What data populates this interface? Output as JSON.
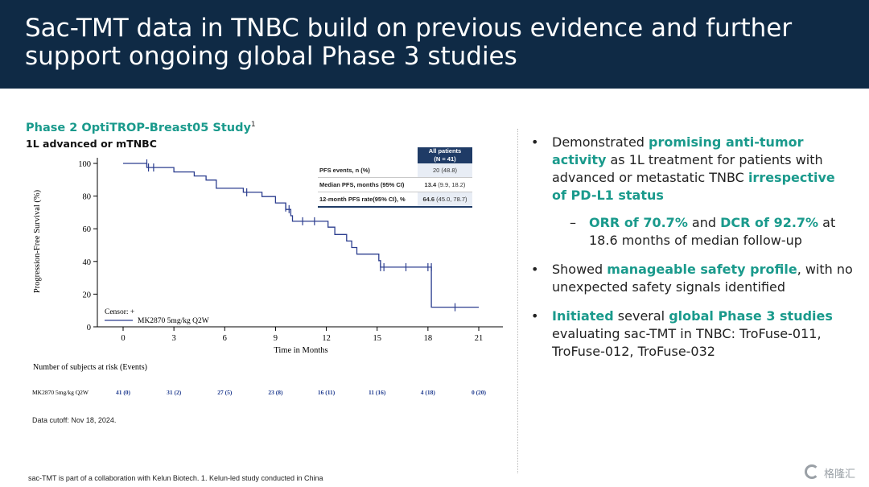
{
  "header": {
    "title": "Sac-TMT data in TNBC build on previous evidence and further support ongoing global Phase 3 studies"
  },
  "study": {
    "title": "Phase 2 OptiTROP-Breast05 Study",
    "title_sup": "1",
    "subtitle": "1L advanced or mTNBC"
  },
  "table": {
    "header_line1": "All patients",
    "header_line2": "(N = 41)",
    "rows": [
      {
        "label": "PFS events, n (%)",
        "value_bold": "",
        "value": "20 (48.8)"
      },
      {
        "label": "Median PFS, months (95% CI)",
        "value_bold": "13.4",
        "value": " (9.9, 18.2)"
      },
      {
        "label": "12-month PFS rate(95% CI), %",
        "value_bold": "64.6",
        "value": "(45.0, 78.7)"
      }
    ]
  },
  "chart_data": {
    "type": "line",
    "subtype": "kaplan-meier step",
    "ylabel": "Progression-Free Survival (%)",
    "xlabel": "Time in Months",
    "xlim": [
      0,
      21
    ],
    "ylim": [
      0,
      100
    ],
    "x_ticks": [
      0,
      3,
      6,
      9,
      12,
      15,
      18,
      21
    ],
    "y_ticks": [
      0,
      20,
      40,
      60,
      80,
      100
    ],
    "legend": {
      "censor_label": "Censor: +",
      "series_label": "MK2870 5mg/kg Q2W",
      "placement": "bottom-left"
    },
    "series": [
      {
        "name": "MK2870 5mg/kg Q2W",
        "color": "#2c3e8f",
        "steps": [
          [
            0,
            100
          ],
          [
            1.4,
            100
          ],
          [
            1.4,
            97.5
          ],
          [
            3.0,
            97.5
          ],
          [
            3.0,
            94.8
          ],
          [
            4.2,
            94.8
          ],
          [
            4.2,
            92.3
          ],
          [
            4.9,
            92.3
          ],
          [
            4.9,
            89.8
          ],
          [
            5.5,
            89.8
          ],
          [
            5.5,
            84.8
          ],
          [
            7.1,
            84.8
          ],
          [
            7.1,
            82.3
          ],
          [
            8.2,
            82.3
          ],
          [
            8.2,
            79.7
          ],
          [
            9.0,
            79.7
          ],
          [
            9.0,
            75.8
          ],
          [
            9.6,
            75.8
          ],
          [
            9.6,
            71.8
          ],
          [
            9.9,
            71.8
          ],
          [
            9.9,
            68.0
          ],
          [
            10.0,
            68.0
          ],
          [
            10.0,
            64.6
          ],
          [
            12.1,
            64.6
          ],
          [
            12.1,
            61.0
          ],
          [
            12.5,
            61.0
          ],
          [
            12.5,
            56.5
          ],
          [
            13.2,
            56.5
          ],
          [
            13.2,
            52.5
          ],
          [
            13.5,
            52.5
          ],
          [
            13.5,
            48.5
          ],
          [
            13.8,
            48.5
          ],
          [
            13.8,
            44.5
          ],
          [
            15.1,
            44.5
          ],
          [
            15.1,
            40.5
          ],
          [
            15.2,
            40.5
          ],
          [
            15.2,
            36.5
          ],
          [
            18.2,
            36.5
          ],
          [
            18.2,
            12.0
          ],
          [
            21.0,
            12.0
          ]
        ],
        "censors": [
          [
            1.4,
            100
          ],
          [
            1.5,
            97.5
          ],
          [
            1.8,
            97.5
          ],
          [
            7.3,
            82.3
          ],
          [
            9.6,
            73.0
          ],
          [
            9.8,
            72.0
          ],
          [
            10.6,
            64.6
          ],
          [
            11.3,
            64.6
          ],
          [
            15.2,
            36.5
          ],
          [
            15.4,
            36.5
          ],
          [
            16.7,
            36.5
          ],
          [
            18.0,
            36.5
          ],
          [
            18.2,
            36.5
          ],
          [
            19.6,
            12.0
          ]
        ]
      }
    ],
    "risk_table": {
      "title": "Number of subjects at risk (Events)",
      "row_label": "MK2870 5mg/kg Q2W",
      "values": [
        "41 (0)",
        "31 (2)",
        "27 (5)",
        "23 (8)",
        "16 (11)",
        "11 (16)",
        "4 (18)",
        "0 (20)"
      ]
    }
  },
  "notes": {
    "data_cutoff": "Data cutoff: Nov 18, 2024.",
    "footnote": "sac-TMT is part of a collaboration with Kelun Biotech. 1. Kelun-led study conducted in China"
  },
  "bullets": {
    "b1": {
      "p1": "Demonstrated ",
      "h1": "promising anti-tumor activity",
      "p2": " as 1L treatment for patients with advanced or metastatic TNBC ",
      "h2": "irrespective of PD-L1 status"
    },
    "b1_sub": {
      "h1": "ORR of 70.7%",
      "p1": " and ",
      "h2": "DCR of 92.7%",
      "p2": " at 18.6 months of median follow-up"
    },
    "b2": {
      "p1": "Showed ",
      "h1": "manageable safety profile",
      "p2": ", with no unexpected safety signals identified"
    },
    "b3": {
      "h1": "Initiated",
      "p1": " several ",
      "h2": "global Phase 3 studies",
      "p2": " evaluating sac-TMT in TNBC: TroFuse-011, TroFuse-012, TroFuse-032"
    },
    "bullet_symbol": "•",
    "dash_symbol": "–"
  },
  "watermark": {
    "text": "格隆汇",
    "icon": "g-logo-icon"
  },
  "colors": {
    "header_bg": "#0f2a45",
    "accent": "#1a9a8c",
    "table_header": "#1f3b66",
    "curve": "#2c3e8f"
  }
}
